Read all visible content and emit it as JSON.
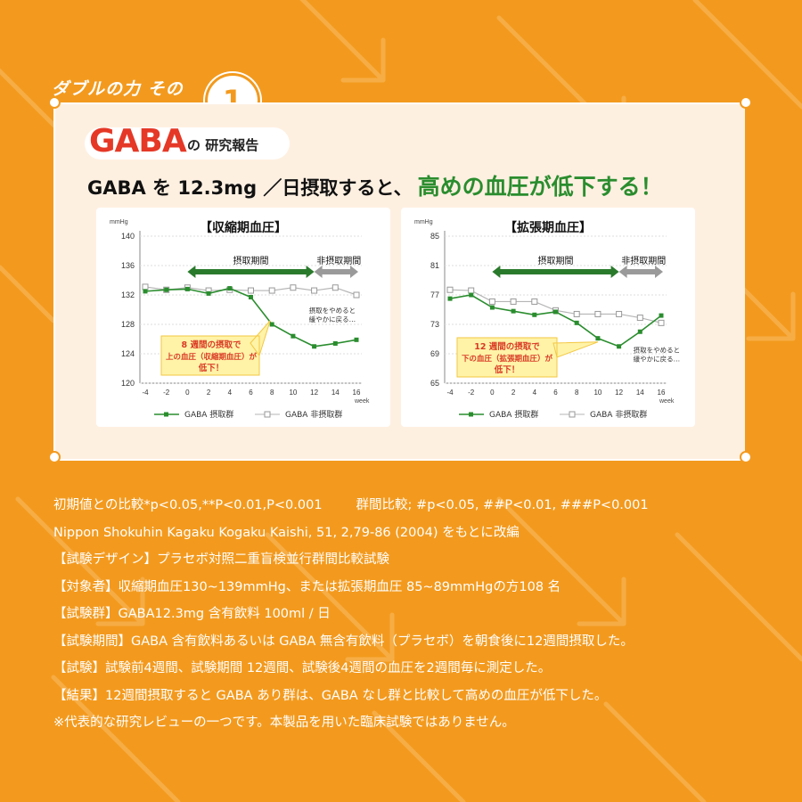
{
  "heading": {
    "label": "ダブルの力 その",
    "number": "1"
  },
  "report": {
    "logo": "GABA",
    "subtitle": "の 研究報告"
  },
  "headline": {
    "main": "GABA を 12.3mg ／日摂取すると、",
    "accent": "高めの血圧が低下する！"
  },
  "chart_data": [
    {
      "type": "line",
      "title": "【収縮期血圧】",
      "ylabel": "mmHg",
      "xlabel": "week",
      "x": [
        -4,
        -2,
        0,
        2,
        4,
        6,
        8,
        10,
        12,
        14,
        16
      ],
      "ylim": [
        120,
        140
      ],
      "yticks": [
        120,
        124,
        128,
        132,
        136,
        140
      ],
      "series": [
        {
          "name": "GABA 摂取群",
          "color": "#2a8d2e",
          "values": [
            132.5,
            132.7,
            132.8,
            132.2,
            132.9,
            131.7,
            128.0,
            126.4,
            125.0,
            125.4,
            125.9
          ]
        },
        {
          "name": "GABA 非摂取群",
          "color": "#b5b5b5",
          "values": [
            133.1,
            132.7,
            133.0,
            132.6,
            132.7,
            132.6,
            132.6,
            133.0,
            132.6,
            133.0,
            132.0
          ]
        }
      ],
      "periods": {
        "intake": "摂取期間",
        "non_intake": "非摂取期間"
      },
      "callout": {
        "line1": "8 週間の摂取で",
        "line2": "上の血圧（収縮期血圧）が",
        "line3": "低下！"
      },
      "stop_note": {
        "line1": "摂取をやめると",
        "line2": "緩やかに戻る…"
      }
    },
    {
      "type": "line",
      "title": "【拡張期血圧】",
      "ylabel": "mmHg",
      "xlabel": "week",
      "x": [
        -4,
        -2,
        0,
        2,
        4,
        6,
        8,
        10,
        12,
        14,
        16
      ],
      "ylim": [
        65,
        85
      ],
      "yticks": [
        65,
        69,
        73,
        77,
        81,
        85
      ],
      "series": [
        {
          "name": "GABA 摂取群",
          "color": "#2a8d2e",
          "values": [
            76.5,
            77.0,
            75.3,
            74.8,
            74.3,
            74.7,
            73.2,
            71.1,
            70.0,
            72.0,
            74.2
          ]
        },
        {
          "name": "GABA 非摂取群",
          "color": "#b5b5b5",
          "values": [
            77.7,
            77.6,
            76.1,
            76.1,
            76.1,
            74.9,
            74.4,
            74.4,
            74.4,
            73.9,
            73.2
          ]
        }
      ],
      "periods": {
        "intake": "摂取期間",
        "non_intake": "非摂取期間"
      },
      "callout": {
        "line1": "12 週間の摂取で",
        "line2": "下の血圧（拡張期血圧）が",
        "line3": "低下！"
      },
      "stop_note": {
        "line1": "摂取をやめると",
        "line2": "緩やかに戻る…"
      }
    }
  ],
  "footnotes": {
    "sig_a": "初期値との比較*p<0.05,**P<0.01,P<0.001",
    "sig_b": "群間比較; #p<0.05, ##P<0.01, ###P<0.001",
    "source": "Nippon Shokuhin Kagaku Kogaku Kaishi, 51, 2,79-86 (2004) をもとに改編",
    "design": "【試験デザイン】プラセボ対照二重盲検並行群間比較試験",
    "subjects": "【対象者】収縮期血圧130~139mmHg、または拡張期血圧 85~89mmHgの方108 名",
    "groups": "【試験群】GABA12.3mg 含有飲料 100ml / 日",
    "period": "【試験期間】GABA 含有飲料あるいは GABA 無含有飲料（プラセボ）を朝食後に12週間摂取した。",
    "test": "【試験】試験前4週間、試験期間 12週間、試験後4週間の血圧を2週間毎に測定した。",
    "result": "【結果】12週間摂取すると GABA あり群は、GABA なし群と比較して高めの血圧が低下した。",
    "note": "※代表的な研究レビューの一つです。本製品を用いた臨床試験ではありません。"
  }
}
